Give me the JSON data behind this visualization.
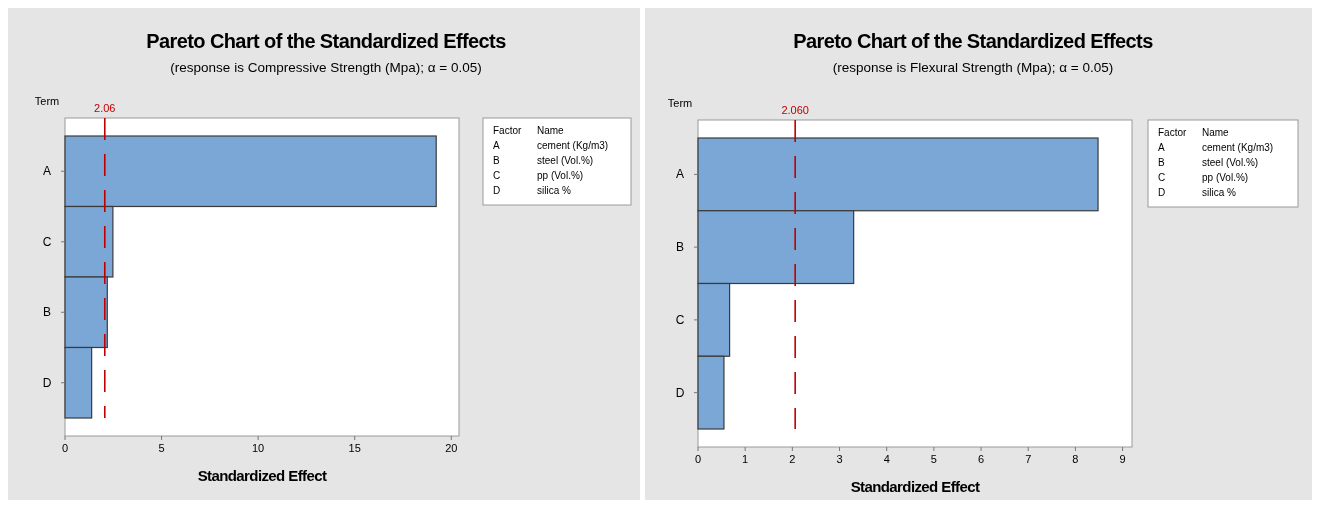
{
  "chart_data": [
    {
      "type": "bar",
      "orientation": "horizontal",
      "title": "Pareto Chart of the Standardized Effects",
      "subtitle": "(response is Compressive Strength (Mpa); α = 0.05)",
      "xlabel": "Standardized Effect",
      "ylabel": "Term",
      "categories": [
        "A",
        "C",
        "B",
        "D"
      ],
      "values": [
        19.22,
        2.48,
        2.19,
        1.38
      ],
      "color": "#7ba7d7",
      "xlim": [
        0,
        20.4
      ],
      "xticks": [
        0,
        5,
        10,
        15,
        20
      ],
      "ref_lines": [
        {
          "axis": "x",
          "value": 2.06,
          "label": "2.06",
          "color": "#c00000",
          "line_style": "dashed"
        }
      ],
      "annotations": [
        "Factor",
        "Name",
        "A",
        "cement (Kg/m3)",
        "B",
        "steel (Vol.%)",
        "C",
        "pp (Vol.%)",
        "D",
        "silica %"
      ]
    },
    {
      "type": "bar",
      "orientation": "horizontal",
      "title": "Pareto Chart of the Standardized Effects",
      "subtitle": "(response is Flexural Strength (Mpa); α = 0.05)",
      "xlabel": "Standardized Effect",
      "ylabel": "Term",
      "categories": [
        "A",
        "B",
        "C",
        "D"
      ],
      "values": [
        8.48,
        3.3,
        0.67,
        0.55
      ],
      "color": "#7ba7d7",
      "xlim": [
        0,
        9.2
      ],
      "xticks": [
        0,
        1,
        2,
        3,
        4,
        5,
        6,
        7,
        8,
        9
      ],
      "ref_lines": [
        {
          "axis": "x",
          "value": 2.06,
          "label": "2.060",
          "color": "#c00000",
          "line_style": "dashed"
        }
      ],
      "annotations": [
        "Factor",
        "Name",
        "A",
        "cement (Kg/m3)",
        "B",
        "steel (Vol.%)",
        "C",
        "pp (Vol.%)",
        "D",
        "silica %"
      ]
    }
  ]
}
